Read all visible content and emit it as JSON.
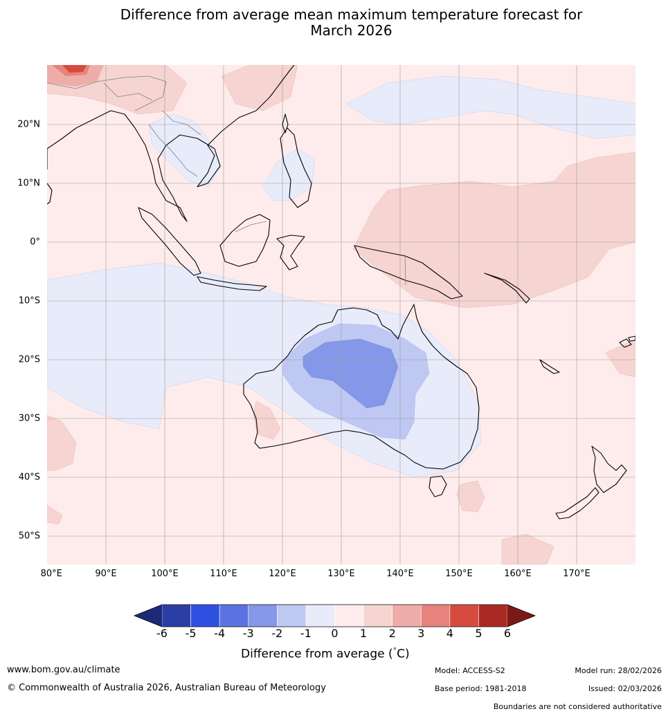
{
  "title": {
    "line1": "Difference from average mean maximum temperature forecast for",
    "line2": "March 2026"
  },
  "map": {
    "region": "Maritime Continent / Australia",
    "lon_labels": [
      "80°E",
      "90°E",
      "100°E",
      "110°E",
      "120°E",
      "130°E",
      "140°E",
      "150°E",
      "160°E",
      "170°E"
    ],
    "lat_labels": [
      "20°N",
      "10°N",
      "0°",
      "10°S",
      "20°S",
      "30°S",
      "40°S",
      "50°S"
    ],
    "lon_range": [
      80,
      180
    ],
    "lat_range": [
      -55,
      30
    ]
  },
  "colorbar": {
    "ticks": [
      "-6",
      "-5",
      "-4",
      "-3",
      "-2",
      "-1",
      "0",
      "1",
      "2",
      "3",
      "4",
      "5",
      "6"
    ],
    "colors": [
      "#2a3ea5",
      "#2e4fe0",
      "#5a73e0",
      "#8597e8",
      "#bfc8f2",
      "#e8ebfa",
      "#fdeceb",
      "#f6d4d2",
      "#eeada8",
      "#e6837c",
      "#d74a3e",
      "#a92a22"
    ],
    "under_color": "#1e2a78",
    "over_color": "#7a1a16",
    "label": "Difference from average ( C)",
    "label_prefix": "Difference from average (",
    "label_sup": "°",
    "label_suffix": "C)"
  },
  "footer": {
    "website": "www.bom.gov.au/climate",
    "copyright": "© Commonwealth of Australia 2026, Australian Bureau of Meteorology",
    "model": "Model: ACCESS-S2",
    "base_period": "Base period: 1981-2018",
    "model_run": "Model run: 28/02/2026",
    "issued": "Issued: 02/03/2026",
    "disclaimer": "Boundaries are not considered authoritative"
  }
}
